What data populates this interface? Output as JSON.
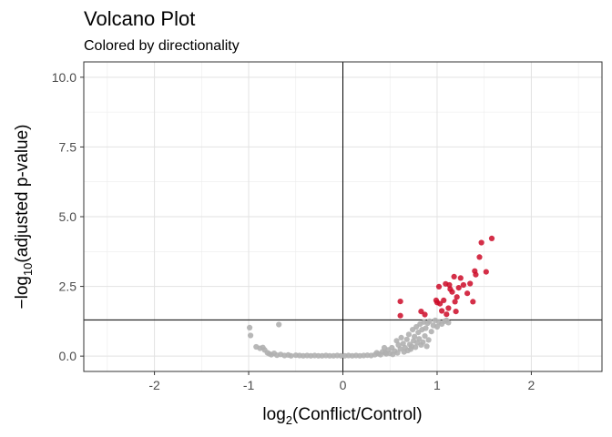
{
  "chart_data": {
    "type": "scatter",
    "title": "Volcano Plot",
    "subtitle": "Colored by directionality",
    "xlabel": "log2(Conflict/Control)",
    "ylabel": "−log10(adjusted p-value)",
    "xlim": [
      -2.75,
      2.75
    ],
    "ylim": [
      -0.55,
      10.55
    ],
    "xticks": [
      -2,
      -1,
      0,
      1,
      2
    ],
    "yticks": [
      0.0,
      2.5,
      5.0,
      7.5,
      10.0
    ],
    "ytick_labels": [
      "0.0",
      "2.5",
      "5.0",
      "7.5",
      "10.0"
    ],
    "grid": true,
    "reference_lines": {
      "vertical_x": 0,
      "horizontal_y": 1.3
    },
    "colors": {
      "significant": "#cc0a28",
      "not_significant": "#b0b0b0"
    },
    "series": [
      {
        "color_key": "not_significant",
        "points": [
          [
            -0.99,
            1.02
          ],
          [
            -0.98,
            0.74
          ],
          [
            -0.68,
            1.13
          ],
          [
            -0.92,
            0.33
          ],
          [
            -0.88,
            0.28
          ],
          [
            -0.85,
            0.31
          ],
          [
            -0.83,
            0.22
          ],
          [
            -0.8,
            0.12
          ],
          [
            -0.78,
            0.08
          ],
          [
            -0.76,
            0.05
          ],
          [
            -0.73,
            0.1
          ],
          [
            -0.7,
            0.03
          ],
          [
            -0.66,
            0.06
          ],
          [
            -0.62,
            0.02
          ],
          [
            -0.58,
            0.04
          ],
          [
            -0.55,
            0.01
          ],
          [
            -0.5,
            0.03
          ],
          [
            -0.46,
            0.02
          ],
          [
            -0.42,
            0.01
          ],
          [
            -0.38,
            0.02
          ],
          [
            -0.34,
            0.01
          ],
          [
            -0.3,
            0.02
          ],
          [
            -0.26,
            0.01
          ],
          [
            -0.22,
            0.01
          ],
          [
            -0.18,
            0.02
          ],
          [
            -0.14,
            0.01
          ],
          [
            -0.1,
            0.01
          ],
          [
            -0.06,
            0.02
          ],
          [
            -0.02,
            0.01
          ],
          [
            0.02,
            0.01
          ],
          [
            0.06,
            0.02
          ],
          [
            0.1,
            0.01
          ],
          [
            0.14,
            0.02
          ],
          [
            0.18,
            0.01
          ],
          [
            0.22,
            0.02
          ],
          [
            0.26,
            0.03
          ],
          [
            0.3,
            0.02
          ],
          [
            0.34,
            0.05
          ],
          [
            0.38,
            0.08
          ],
          [
            0.42,
            0.16
          ],
          [
            0.45,
            0.12
          ],
          [
            0.48,
            0.22
          ],
          [
            0.5,
            0.1
          ],
          [
            0.52,
            0.3
          ],
          [
            0.55,
            0.18
          ],
          [
            0.57,
            0.55
          ],
          [
            0.59,
            0.4
          ],
          [
            0.61,
            0.26
          ],
          [
            0.62,
            0.66
          ],
          [
            0.64,
            0.45
          ],
          [
            0.66,
            0.3
          ],
          [
            0.68,
            0.6
          ],
          [
            0.7,
            0.78
          ],
          [
            0.71,
            0.42
          ],
          [
            0.73,
            0.35
          ],
          [
            0.74,
            0.95
          ],
          [
            0.75,
            0.55
          ],
          [
            0.76,
            0.7
          ],
          [
            0.78,
            1.05
          ],
          [
            0.79,
            0.48
          ],
          [
            0.8,
            0.85
          ],
          [
            0.81,
            0.62
          ],
          [
            0.82,
            1.15
          ],
          [
            0.83,
            0.4
          ],
          [
            0.84,
            0.95
          ],
          [
            0.86,
            1.22
          ],
          [
            0.87,
            0.72
          ],
          [
            0.88,
            1.0
          ],
          [
            0.9,
            1.18
          ],
          [
            0.91,
            0.58
          ],
          [
            0.92,
            1.25
          ],
          [
            0.94,
            0.88
          ],
          [
            0.96,
            1.1
          ],
          [
            0.98,
            1.28
          ],
          [
            1.0,
            1.05
          ],
          [
            1.02,
            1.22
          ],
          [
            1.05,
            1.15
          ],
          [
            1.08,
            1.25
          ],
          [
            1.1,
            1.28
          ],
          [
            1.12,
            1.2
          ],
          [
            0.36,
            0.12
          ],
          [
            0.4,
            0.05
          ],
          [
            0.44,
            0.3
          ],
          [
            0.46,
            0.08
          ],
          [
            0.53,
            0.06
          ],
          [
            0.58,
            0.12
          ],
          [
            0.65,
            0.15
          ],
          [
            0.69,
            0.2
          ],
          [
            0.72,
            0.25
          ],
          [
            0.77,
            0.32
          ],
          [
            0.85,
            0.5
          ],
          [
            0.89,
            0.35
          ]
        ]
      },
      {
        "color_key": "significant",
        "points": [
          [
            0.61,
            1.96
          ],
          [
            0.61,
            1.45
          ],
          [
            0.83,
            1.6
          ],
          [
            0.87,
            1.49
          ],
          [
            0.99,
            2.0
          ],
          [
            1.0,
            1.92
          ],
          [
            1.02,
            2.49
          ],
          [
            1.03,
            1.88
          ],
          [
            1.05,
            1.62
          ],
          [
            1.07,
            2.0
          ],
          [
            1.09,
            2.59
          ],
          [
            1.1,
            1.5
          ],
          [
            1.12,
            1.72
          ],
          [
            1.13,
            2.55
          ],
          [
            1.14,
            2.4
          ],
          [
            1.16,
            2.3
          ],
          [
            1.18,
            2.85
          ],
          [
            1.19,
            1.95
          ],
          [
            1.2,
            1.6
          ],
          [
            1.21,
            2.12
          ],
          [
            1.23,
            2.45
          ],
          [
            1.25,
            2.8
          ],
          [
            1.28,
            2.55
          ],
          [
            1.32,
            2.25
          ],
          [
            1.35,
            2.6
          ],
          [
            1.38,
            1.95
          ],
          [
            1.4,
            3.05
          ],
          [
            1.41,
            2.92
          ],
          [
            1.45,
            3.55
          ],
          [
            1.47,
            4.07
          ],
          [
            1.52,
            3.02
          ],
          [
            1.58,
            4.22
          ]
        ]
      }
    ]
  }
}
